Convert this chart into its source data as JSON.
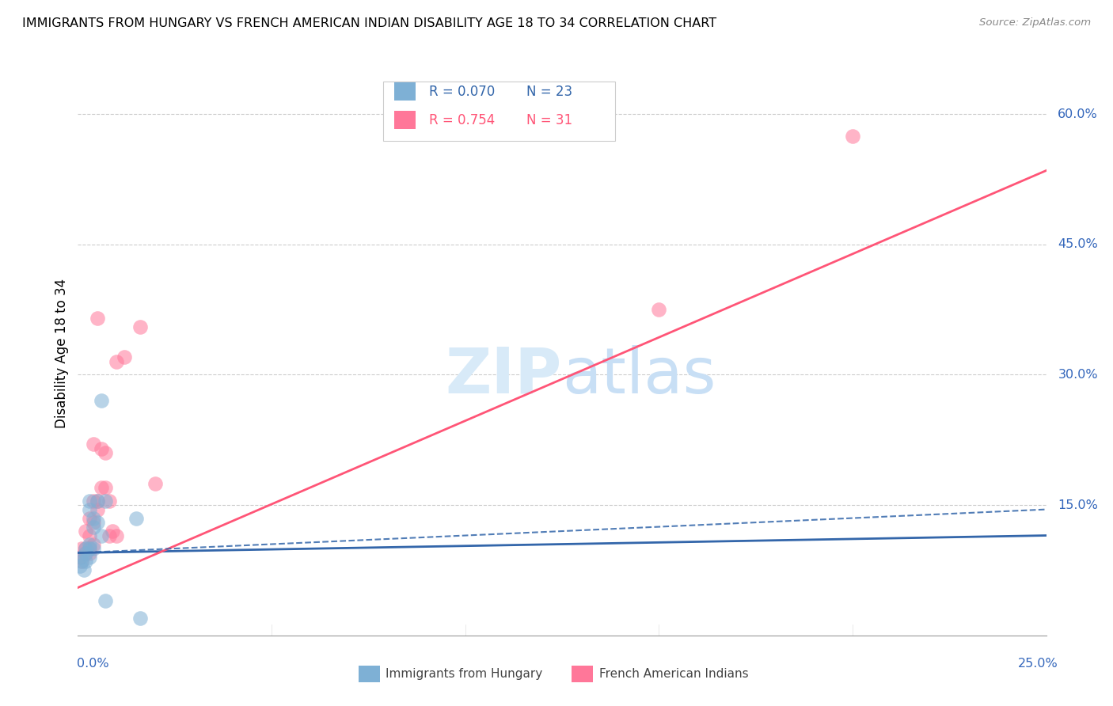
{
  "title": "IMMIGRANTS FROM HUNGARY VS FRENCH AMERICAN INDIAN DISABILITY AGE 18 TO 34 CORRELATION CHART",
  "source": "Source: ZipAtlas.com",
  "ylabel": "Disability Age 18 to 34",
  "legend_r1": "R = 0.070",
  "legend_n1": "N = 23",
  "legend_r2": "R = 0.754",
  "legend_n2": "N = 31",
  "color_blue": "#7EB0D5",
  "color_pink": "#FF7799",
  "color_blue_dark": "#3366AA",
  "color_pink_dark": "#FF5577",
  "color_axis_label": "#3366BB",
  "watermark_color": "#D8EAF8",
  "xlim": [
    0.0,
    0.25
  ],
  "ylim": [
    0.0,
    0.65
  ],
  "yticks": [
    0.15,
    0.3,
    0.45,
    0.6
  ],
  "ytick_labels": [
    "15.0%",
    "30.0%",
    "45.0%",
    "60.0%"
  ],
  "hungary_x": [
    0.0005,
    0.001,
    0.001,
    0.0015,
    0.002,
    0.002,
    0.002,
    0.003,
    0.003,
    0.003,
    0.003,
    0.003,
    0.004,
    0.004,
    0.004,
    0.005,
    0.005,
    0.006,
    0.006,
    0.007,
    0.007,
    0.015,
    0.016
  ],
  "hungary_y": [
    0.08,
    0.09,
    0.085,
    0.075,
    0.1,
    0.085,
    0.095,
    0.09,
    0.1,
    0.105,
    0.145,
    0.155,
    0.1,
    0.125,
    0.135,
    0.13,
    0.155,
    0.115,
    0.27,
    0.155,
    0.04,
    0.135,
    0.02
  ],
  "french_x": [
    0.0005,
    0.001,
    0.001,
    0.002,
    0.002,
    0.002,
    0.003,
    0.003,
    0.003,
    0.003,
    0.004,
    0.004,
    0.004,
    0.004,
    0.005,
    0.005,
    0.005,
    0.006,
    0.006,
    0.007,
    0.007,
    0.008,
    0.008,
    0.009,
    0.01,
    0.01,
    0.012,
    0.016,
    0.02,
    0.15,
    0.2
  ],
  "french_y": [
    0.09,
    0.1,
    0.085,
    0.095,
    0.1,
    0.12,
    0.095,
    0.1,
    0.115,
    0.135,
    0.105,
    0.13,
    0.155,
    0.22,
    0.145,
    0.155,
    0.365,
    0.17,
    0.215,
    0.17,
    0.21,
    0.115,
    0.155,
    0.12,
    0.115,
    0.315,
    0.32,
    0.355,
    0.175,
    0.375,
    0.575
  ],
  "hungary_trend": [
    0.0,
    0.25,
    0.095,
    0.115
  ],
  "french_trend": [
    0.0,
    0.25,
    0.055,
    0.535
  ],
  "hungary_dash": [
    0.0,
    0.25,
    0.095,
    0.145
  ],
  "label_hungary": "Immigrants from Hungary",
  "label_french": "French American Indians"
}
